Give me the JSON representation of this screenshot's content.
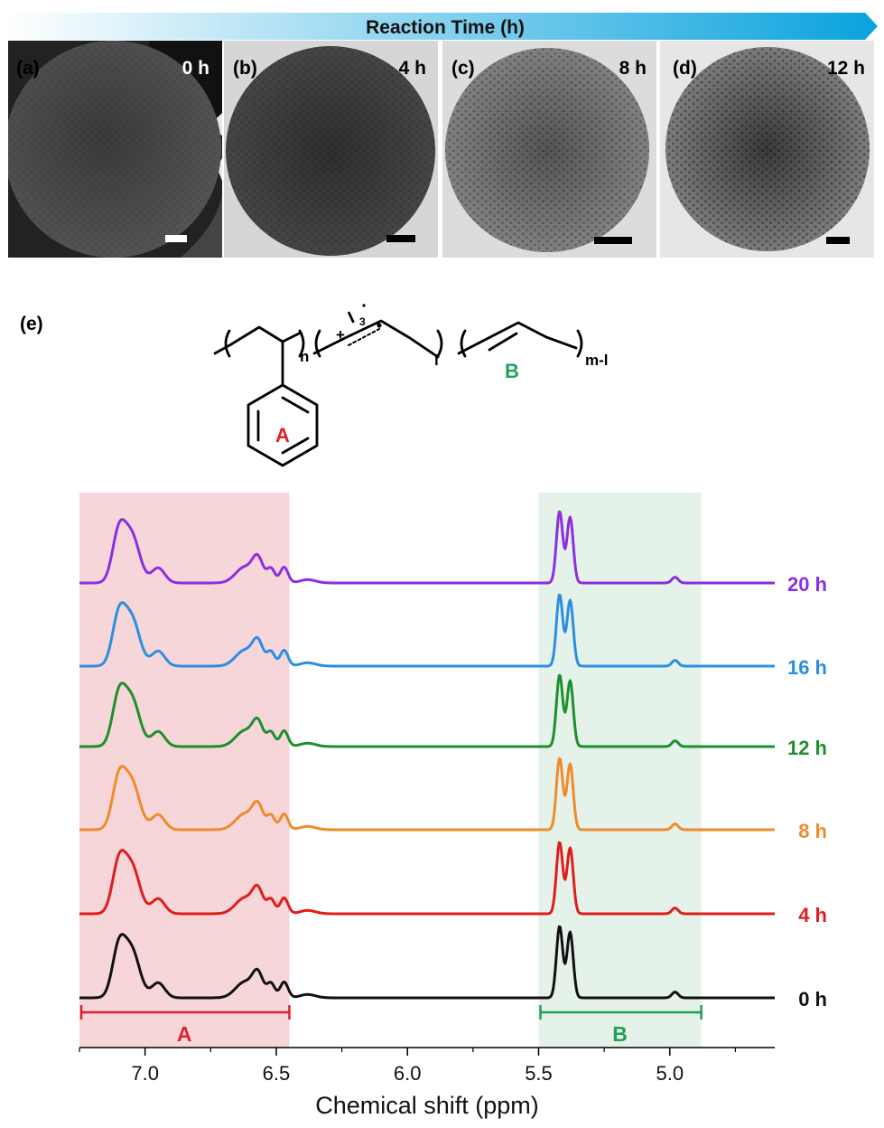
{
  "banner": {
    "title": "Reaction Time (h)",
    "colors": [
      "#ffffff",
      "#0aa3dd"
    ]
  },
  "panels": [
    {
      "tag": "(a)",
      "time": "0 h",
      "style": "dark"
    },
    {
      "tag": "(b)",
      "time": "4 h",
      "style": "medium"
    },
    {
      "tag": "(c)",
      "time": "8 h",
      "style": "light"
    },
    {
      "tag": "(d)",
      "time": "12 h",
      "style": "light-dense"
    }
  ],
  "structure": {
    "tag": "(e)",
    "subscripts": {
      "n": "n",
      "l": "l",
      "ml": "m-l"
    },
    "iodide": "I",
    "iodide_sub": "3",
    "charge": "+",
    "ring_label": "A",
    "ring_color": "#e0202a",
    "double_bond_label": "B",
    "double_bond_color": "#22a05a"
  },
  "chart_data": {
    "type": "line",
    "xlabel": "Chemical shift (ppm)",
    "x_reversed": true,
    "xlim": [
      7.25,
      4.6
    ],
    "xticks": [
      7.0,
      6.5,
      6.0,
      5.5,
      5.0
    ],
    "xtick_labels": [
      "7.0",
      "6.5",
      "6.0",
      "5.5",
      "5.0"
    ],
    "regions": [
      {
        "label": "A",
        "from": 7.25,
        "to": 6.45,
        "fill": "#f6cfd3",
        "color": "#e0202a"
      },
      {
        "label": "B",
        "from": 5.5,
        "to": 4.88,
        "fill": "#dff0e6",
        "color": "#22a05a"
      }
    ],
    "peaks": [
      {
        "center": 7.1,
        "height": 0.58,
        "width": 0.025
      },
      {
        "center": 7.05,
        "height": 0.55,
        "width": 0.03
      },
      {
        "center": 6.95,
        "height": 0.18,
        "width": 0.025
      },
      {
        "center": 6.62,
        "height": 0.19,
        "width": 0.035
      },
      {
        "center": 6.57,
        "height": 0.27,
        "width": 0.02
      },
      {
        "center": 6.52,
        "height": 0.17,
        "width": 0.015
      },
      {
        "center": 6.47,
        "height": 0.19,
        "width": 0.015
      },
      {
        "center": 6.38,
        "height": 0.04,
        "width": 0.03
      },
      {
        "center": 5.42,
        "height": 0.86,
        "width": 0.012
      },
      {
        "center": 5.38,
        "height": 0.79,
        "width": 0.012
      },
      {
        "center": 4.98,
        "height": 0.07,
        "width": 0.012
      }
    ],
    "series": [
      {
        "name": "0 h",
        "color": "#111111"
      },
      {
        "name": "4 h",
        "color": "#e01c1c"
      },
      {
        "name": "8 h",
        "color": "#f08a2c"
      },
      {
        "name": "12 h",
        "color": "#1e8f2e"
      },
      {
        "name": "16 h",
        "color": "#2b8fe0"
      },
      {
        "name": "20 h",
        "color": "#8b2fe0"
      }
    ]
  }
}
